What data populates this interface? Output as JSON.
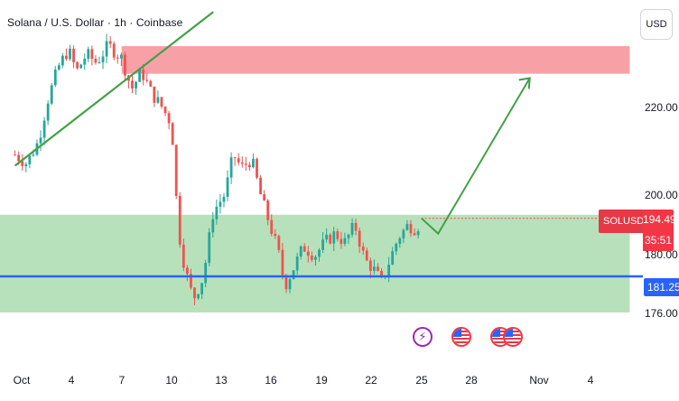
{
  "header": {
    "title": "Solana / U.S. Dollar · 1h · Coinbase",
    "currency_button": "USD"
  },
  "colors": {
    "up": "#26a69a",
    "down": "#ef5350",
    "resistance_zone": "#f7a1a7",
    "support_zone": "#b7e1bb",
    "support_line": "#2962ff",
    "trend_line": "#43a047",
    "projection": "#43a047"
  },
  "annotations": {
    "event_icons": [
      "lightning-icon",
      "us-flag-icon",
      "us-flag-icon",
      "us-flag-icon"
    ]
  },
  "chart_data": {
    "type": "candlestick",
    "title": "Solana / U.S. Dollar · 1h · Coinbase",
    "symbol": "SOLUSD",
    "xlabel": "",
    "ylabel": "",
    "x_ticks": [
      "Oct",
      "4",
      "7",
      "10",
      "13",
      "16",
      "19",
      "22",
      "25",
      "28",
      "Nov",
      "4"
    ],
    "x_tick_days": [
      1,
      4,
      7,
      10,
      13,
      16,
      19,
      22,
      25,
      28,
      32,
      35
    ],
    "y_ticks": [
      176.0,
      180.0,
      200.0,
      220.0
    ],
    "y_tick_labels": [
      "176.00",
      "180.00",
      "200.00",
      "220.00"
    ],
    "y_range": [
      171.5,
      241.6
    ],
    "x_range_days": [
      0.6,
      37.5
    ],
    "last_price": "194.49",
    "countdown": "35:51",
    "support_level": "181.25",
    "support_price": 181.25,
    "resistance_zone": {
      "from_day": 7.0,
      "to_day": 37.5,
      "price_low": 227.5,
      "price_high": 233.8
    },
    "support_zone": {
      "from_day": 0.6,
      "to_day": 37.5,
      "price_low": 173.0,
      "price_high": 195.3
    },
    "trend_line": {
      "from": {
        "day": 0.6,
        "price": 206.5
      },
      "to": {
        "day": 12.5,
        "price": 241.6
      }
    },
    "projection_path": [
      {
        "day": 25.0,
        "price": 194.5
      },
      {
        "day": 26.0,
        "price": 191.0
      },
      {
        "day": 31.5,
        "price": 226.5
      }
    ],
    "price_path_keypoints": [
      [
        0.6,
        209
      ],
      [
        1.3,
        207
      ],
      [
        2.0,
        212
      ],
      [
        2.6,
        222
      ],
      [
        3.2,
        229
      ],
      [
        3.8,
        233
      ],
      [
        4.3,
        228
      ],
      [
        4.9,
        232
      ],
      [
        5.5,
        230
      ],
      [
        6.2,
        234
      ],
      [
        7.0,
        231
      ],
      [
        7.6,
        224
      ],
      [
        8.2,
        228
      ],
      [
        8.8,
        223
      ],
      [
        9.4,
        220
      ],
      [
        10.0,
        216
      ],
      [
        10.4,
        192
      ],
      [
        10.8,
        183
      ],
      [
        11.3,
        176
      ],
      [
        11.9,
        181
      ],
      [
        12.5,
        196
      ],
      [
        13.2,
        200
      ],
      [
        13.7,
        209
      ],
      [
        14.2,
        206
      ],
      [
        14.8,
        208
      ],
      [
        15.4,
        199
      ],
      [
        15.9,
        193
      ],
      [
        16.4,
        187
      ],
      [
        16.8,
        179
      ],
      [
        17.3,
        183
      ],
      [
        17.9,
        188
      ],
      [
        18.6,
        186
      ],
      [
        19.2,
        189
      ],
      [
        19.8,
        191
      ],
      [
        20.4,
        189
      ],
      [
        21.0,
        193
      ],
      [
        21.6,
        185
      ],
      [
        22.1,
        183
      ],
      [
        22.6,
        180
      ],
      [
        23.1,
        185
      ],
      [
        23.6,
        190
      ],
      [
        24.2,
        193
      ],
      [
        24.7,
        192
      ],
      [
        25.0,
        194.5
      ]
    ]
  }
}
